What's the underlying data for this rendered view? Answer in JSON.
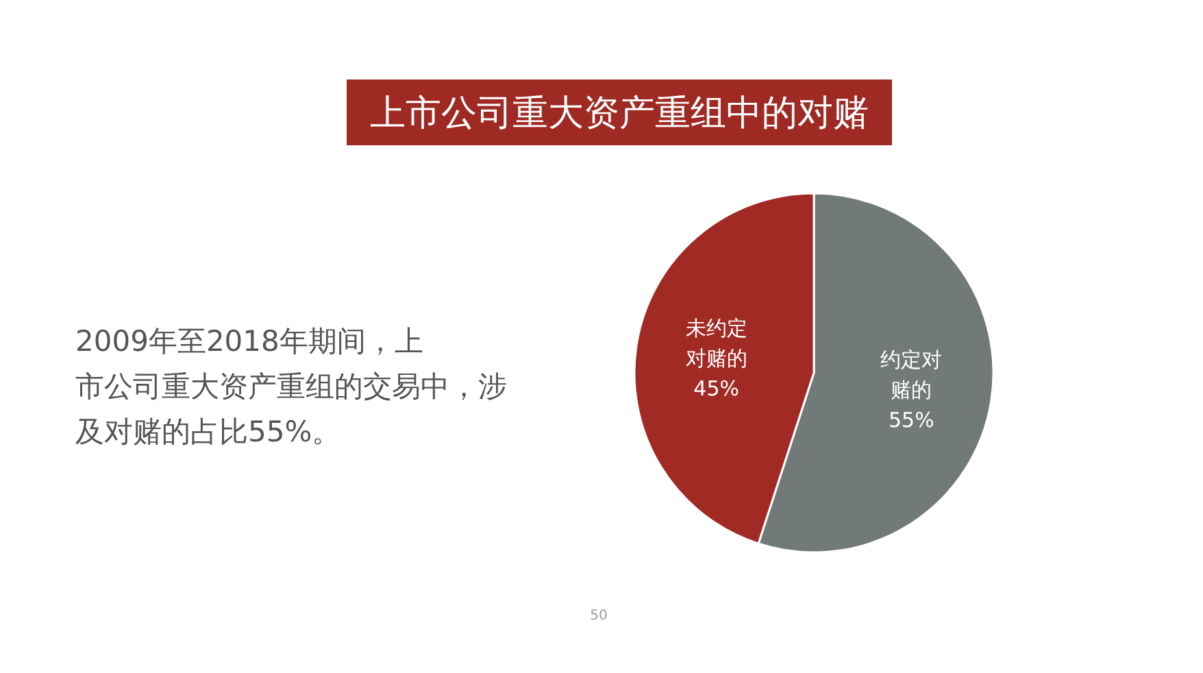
{
  "chart_data": {
    "type": "pie",
    "title": "上市公司重大资产重组中的对赌",
    "categories": [
      "约定对赌的",
      "未约定对赌的"
    ],
    "values": [
      55,
      45
    ],
    "colors": [
      "#717a79",
      "#a22a25"
    ],
    "value_labels": [
      "55%",
      "45%"
    ],
    "annotations": [
      "2009年至2018年期间，上市公司重大资产重组的交易中，涉及对赌的占比55%。",
      "50"
    ]
  }
}
